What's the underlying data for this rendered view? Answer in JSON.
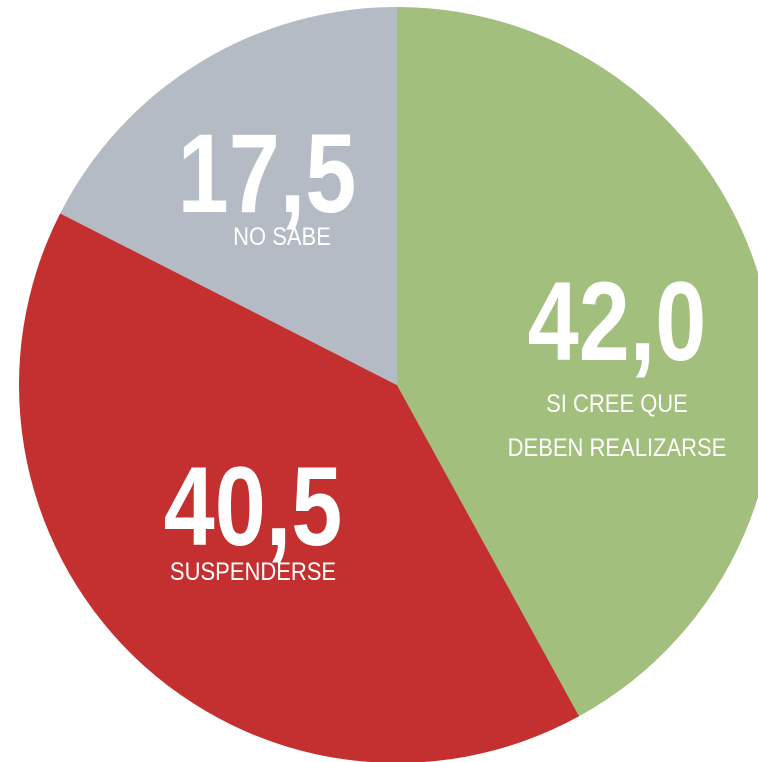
{
  "chart_data": {
    "type": "pie",
    "categories": [
      "SI CREE QUE\nDEBEN REALIZARSE",
      "SUSPENDERSE",
      "NO SABE"
    ],
    "values": [
      42.0,
      40.5,
      17.5
    ],
    "value_labels": [
      "42,0",
      "40,5",
      "17,5"
    ],
    "colors": [
      "#a3bf7d",
      "#c4302f",
      "#b4bbc4"
    ]
  }
}
